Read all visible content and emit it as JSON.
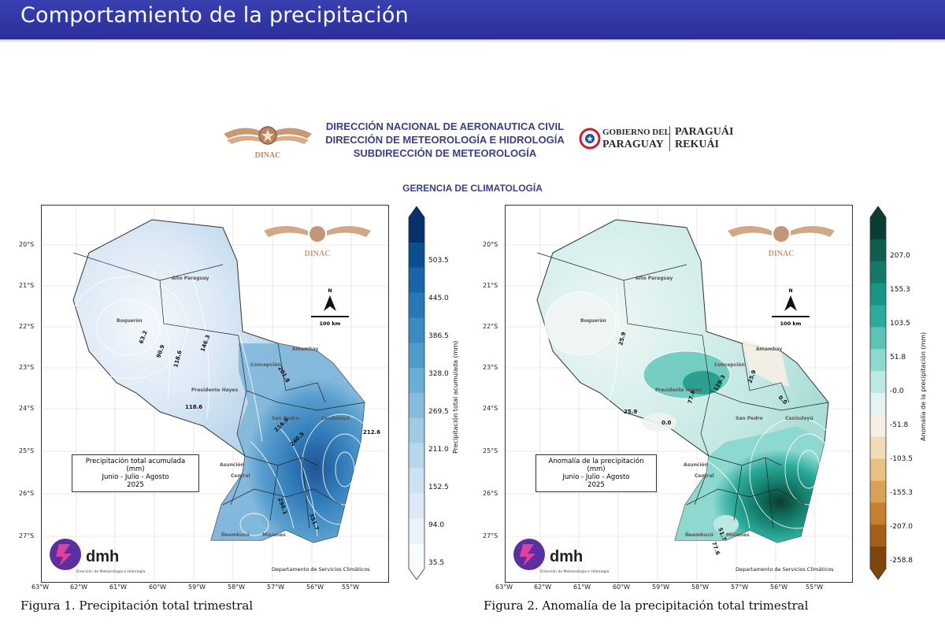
{
  "slide": {
    "title": "Comportamiento de la precipitación"
  },
  "header": {
    "dinac_logo_text": "DINAC",
    "org_lines": [
      "DIRECCIÓN NACIONAL DE AERONAUTICA CIVIL",
      "DIRECCIÓN DE METEOROLOGÍA E HIDROLOGÍA",
      "SUBDIRECCIÓN DE METEOROLOGÍA"
    ],
    "gov_line1": "GOBIERNO DEL",
    "gov_line2": "PARAGUAY",
    "gov_line3": "PARAGUÁI",
    "gov_line4": "REKUÁI",
    "gerencia": "GERENCIA DE CLIMATOLOGÍA"
  },
  "map_common": {
    "lat_labels": [
      "20°S",
      "21°S",
      "22°S",
      "23°S",
      "24°S",
      "25°S",
      "26°S",
      "27°S"
    ],
    "lon_labels": [
      "63°W",
      "62°W",
      "61°W",
      "60°W",
      "59°W",
      "58°W",
      "57°W",
      "56°W",
      "55°W"
    ],
    "north_label": "N",
    "scale_label": "100 km",
    "dinac_watermark": "DINAC",
    "dmh_label": "dmh",
    "dmh_sub": "Dirección de Meteorología e Hidrología",
    "dept_label": "Departamento de Servicios Climáticos",
    "places": [
      "Alto Paraguay",
      "Boquerón",
      "Concepción",
      "Amambay",
      "Presidente Hayes",
      "San Pedro",
      "Canindeyú",
      "Asunción",
      "Central",
      "Ñeembucú",
      "Misiones"
    ]
  },
  "map1": {
    "legend_lines": [
      "Precipitación total acumulada (mm)",
      "Junio - Julio - Agosto",
      "2025"
    ],
    "colorbar_label": "Precipitación total acumulada (mm)",
    "colorbar_ticks": [
      "503.5",
      "445.0",
      "386.5",
      "328.0",
      "269.5",
      "211.0",
      "152.5",
      "94.0",
      "35.5"
    ],
    "colorbar_colors": [
      "#08306b",
      "#0b4f92",
      "#1764ab",
      "#2878b8",
      "#3a8bc2",
      "#4f9bcb",
      "#6aaed6",
      "#86bcdd",
      "#a0cbe2",
      "#b7d7ea",
      "#cbe2f2",
      "#dde9f6",
      "#ebf3fa",
      "#f7fbff"
    ],
    "contour_labels": [
      "63.2",
      "90.9",
      "118.6",
      "146.3",
      "118.6",
      "201.8",
      "212.6",
      "214.9",
      "240.5",
      "296.1",
      "351.7"
    ],
    "caption": "Figura 1. Precipitación total trimestral"
  },
  "map2": {
    "legend_lines": [
      "Anomalía de la precipitación (mm)",
      "Junio - Julio - Agosto",
      "2025"
    ],
    "colorbar_label": "Anomalía de la precipitación (mm)",
    "colorbar_ticks": [
      "207.0",
      "155.3",
      "103.5",
      "51.8",
      "-0.0",
      "-51.8",
      "-103.5",
      "-155.3",
      "-207.0",
      "-258.8"
    ],
    "colorbar_colors": [
      "#0b3d32",
      "#0f5e4f",
      "#137a68",
      "#199583",
      "#2bab9b",
      "#5cc4b7",
      "#8dd8cf",
      "#bde9e3",
      "#e3f4f2",
      "#f6efe3",
      "#f2dcb5",
      "#e8c184",
      "#d9a256",
      "#c57f2f",
      "#a55f16",
      "#7f440c"
    ],
    "contour_labels": [
      "25.9",
      "25.9",
      "0.0",
      "77.6",
      "129.3",
      "25.9",
      "0.0",
      "51.7",
      "77.6"
    ],
    "caption": "Figura 2. Anomalía de la precipitación total trimestral"
  }
}
